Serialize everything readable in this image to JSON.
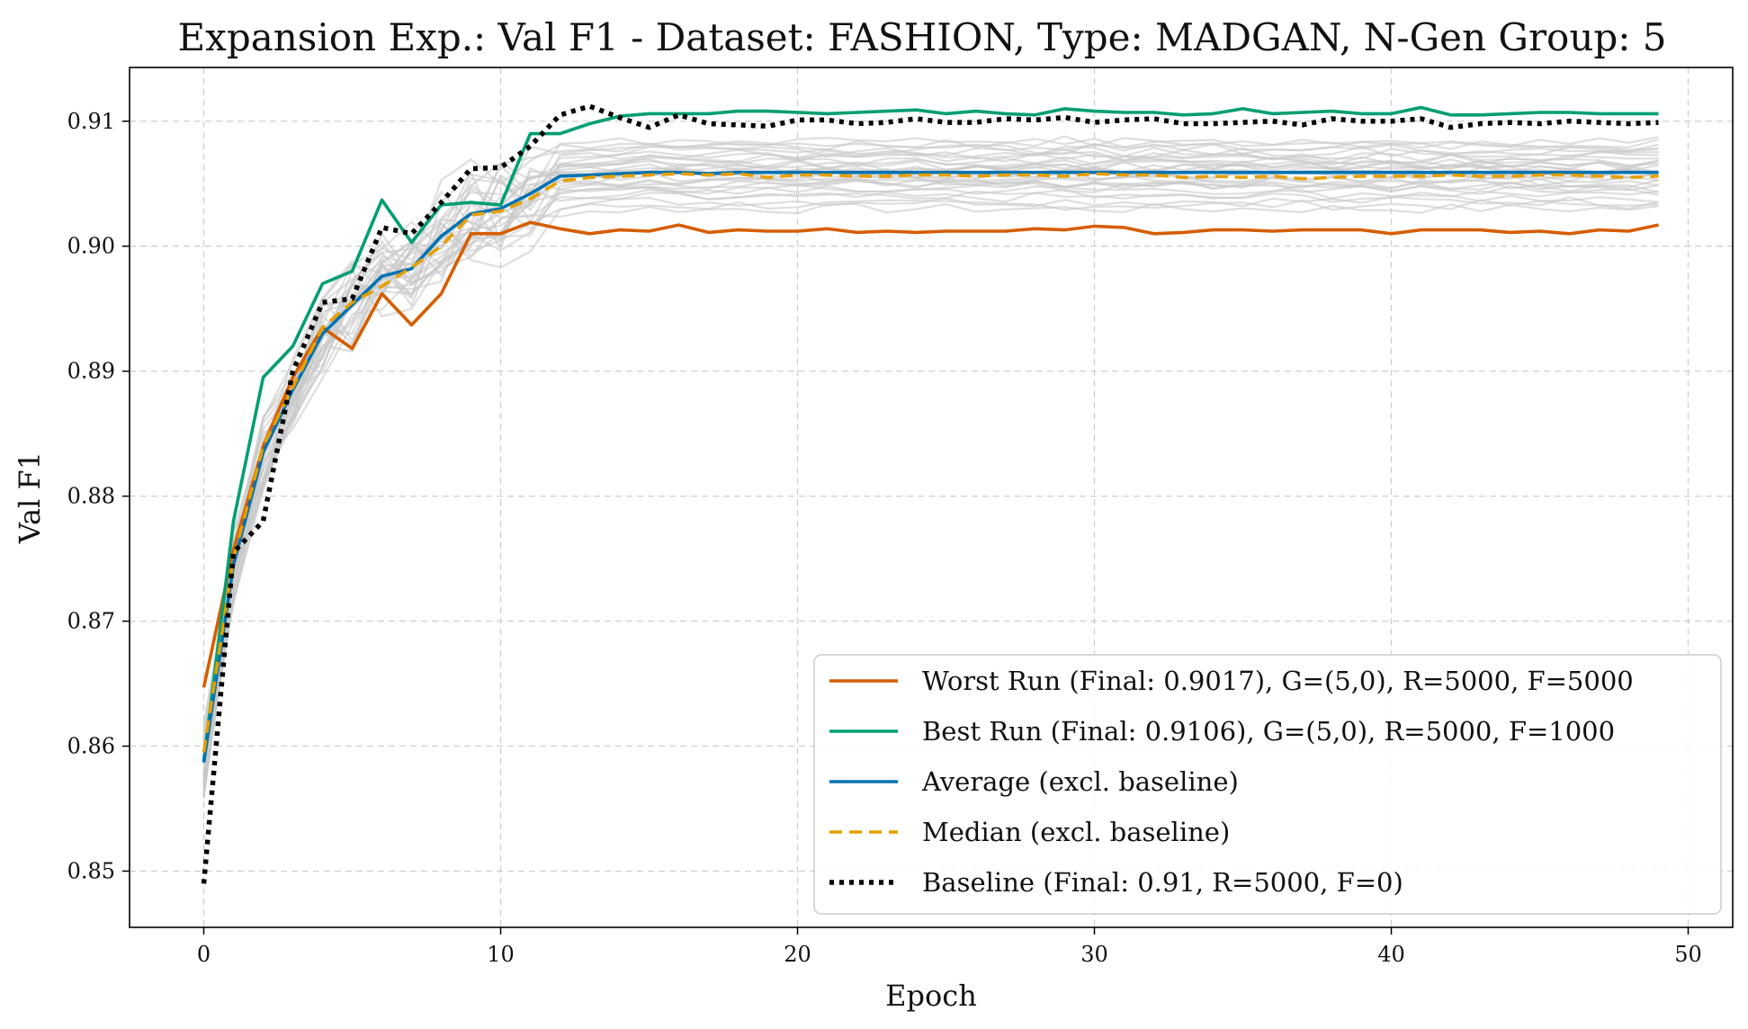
{
  "chart_data": {
    "type": "line",
    "title": "Expansion Exp.: Val F1 - Dataset: FASHION, Type: MADGAN, N-Gen Group: 5",
    "xlabel": "Epoch",
    "ylabel": "Val F1",
    "xlim": [
      -2.5,
      51.5
    ],
    "ylim": [
      0.8455,
      0.9143
    ],
    "xticks": [
      0,
      10,
      20,
      30,
      40,
      50
    ],
    "yticks": [
      0.85,
      0.86,
      0.87,
      0.88,
      0.89,
      0.9,
      0.91
    ],
    "ytick_labels": [
      "0.85",
      "0.86",
      "0.87",
      "0.88",
      "0.89",
      "0.90",
      "0.91"
    ],
    "grid": true,
    "legend_position": "lower-right",
    "background_runs": {
      "description_color": "#c8c8c8",
      "count": 30,
      "plateau_values": [
        0.903,
        0.9033,
        0.9036,
        0.9039,
        0.9042,
        0.9045,
        0.9047,
        0.9049,
        0.9051,
        0.9053,
        0.9055,
        0.9057,
        0.9058,
        0.906,
        0.9061,
        0.9062,
        0.9064,
        0.9066,
        0.9068,
        0.907,
        0.9072,
        0.9074,
        0.9076,
        0.9078,
        0.908,
        0.9082,
        0.9084,
        0.9058,
        0.905,
        0.9065
      ]
    },
    "series": [
      {
        "name": "Worst Run (Final: 0.9017), G=(5,0), R=5000, F=5000",
        "color": "#d55e00",
        "style": "solid",
        "x": [
          0,
          1,
          2,
          3,
          4,
          5,
          6,
          7,
          8,
          9,
          10,
          11,
          12,
          13,
          14,
          15,
          16,
          17,
          18,
          19,
          20,
          21,
          22,
          23,
          24,
          25,
          26,
          27,
          28,
          29,
          30,
          31,
          32,
          33,
          34,
          35,
          36,
          37,
          38,
          39,
          40,
          41,
          42,
          43,
          44,
          45,
          46,
          47,
          48,
          49
        ],
        "values": [
          0.8647,
          0.8757,
          0.884,
          0.8895,
          0.8935,
          0.8918,
          0.8962,
          0.8937,
          0.8962,
          0.901,
          0.901,
          0.9019,
          0.9014,
          0.901,
          0.9013,
          0.9012,
          0.9017,
          0.9011,
          0.9013,
          0.9012,
          0.9012,
          0.9014,
          0.9011,
          0.9012,
          0.9011,
          0.9012,
          0.9012,
          0.9012,
          0.9014,
          0.9013,
          0.9016,
          0.9015,
          0.901,
          0.9011,
          0.9013,
          0.9013,
          0.9012,
          0.9013,
          0.9013,
          0.9013,
          0.901,
          0.9013,
          0.9013,
          0.9013,
          0.9011,
          0.9012,
          0.901,
          0.9013,
          0.9012,
          0.9017
        ]
      },
      {
        "name": "Best Run (Final: 0.9106), G=(5,0), R=5000, F=1000",
        "color": "#009e73",
        "style": "solid",
        "x": [
          0,
          1,
          2,
          3,
          4,
          5,
          6,
          7,
          8,
          9,
          10,
          11,
          12,
          13,
          14,
          15,
          16,
          17,
          18,
          19,
          20,
          21,
          22,
          23,
          24,
          25,
          26,
          27,
          28,
          29,
          30,
          31,
          32,
          33,
          34,
          35,
          36,
          37,
          38,
          39,
          40,
          41,
          42,
          43,
          44,
          45,
          46,
          47,
          48,
          49
        ],
        "values": [
          0.8588,
          0.878,
          0.8895,
          0.892,
          0.897,
          0.898,
          0.9037,
          0.9003,
          0.9033,
          0.9035,
          0.9033,
          0.909,
          0.909,
          0.9098,
          0.9104,
          0.9106,
          0.9106,
          0.9106,
          0.9108,
          0.9108,
          0.9107,
          0.9106,
          0.9107,
          0.9108,
          0.9109,
          0.9106,
          0.9108,
          0.9106,
          0.9105,
          0.911,
          0.9108,
          0.9107,
          0.9107,
          0.9105,
          0.9106,
          0.911,
          0.9106,
          0.9107,
          0.9108,
          0.9106,
          0.9106,
          0.9111,
          0.9105,
          0.9105,
          0.9106,
          0.9107,
          0.9107,
          0.9106,
          0.9106,
          0.9106
        ]
      },
      {
        "name": "Average (excl. baseline)",
        "color": "#0072b2",
        "style": "solid",
        "x": [
          0,
          1,
          2,
          3,
          4,
          5,
          6,
          7,
          8,
          9,
          10,
          11,
          12,
          13,
          14,
          15,
          16,
          17,
          18,
          19,
          20,
          21,
          22,
          23,
          24,
          25,
          26,
          27,
          28,
          29,
          30,
          31,
          32,
          33,
          34,
          35,
          36,
          37,
          38,
          39,
          40,
          41,
          42,
          43,
          44,
          45,
          46,
          47,
          48,
          49
        ],
        "values": [
          0.8587,
          0.8745,
          0.8835,
          0.8885,
          0.893,
          0.8953,
          0.8976,
          0.8982,
          0.9008,
          0.9026,
          0.903,
          0.9042,
          0.9056,
          0.9057,
          0.9058,
          0.9059,
          0.9059,
          0.9058,
          0.9059,
          0.9059,
          0.9059,
          0.9059,
          0.9059,
          0.9059,
          0.9059,
          0.9059,
          0.9059,
          0.9059,
          0.9059,
          0.9059,
          0.9059,
          0.9059,
          0.9059,
          0.9059,
          0.9059,
          0.9059,
          0.9059,
          0.9059,
          0.9059,
          0.9059,
          0.9059,
          0.9059,
          0.9059,
          0.9059,
          0.9059,
          0.9059,
          0.9059,
          0.9059,
          0.9059,
          0.9059
        ]
      },
      {
        "name": "Median (excl. baseline)",
        "color": "#e69f00",
        "style": "dashed",
        "x": [
          0,
          1,
          2,
          3,
          4,
          5,
          6,
          7,
          8,
          9,
          10,
          11,
          12,
          13,
          14,
          15,
          16,
          17,
          18,
          19,
          20,
          21,
          22,
          23,
          24,
          25,
          26,
          27,
          28,
          29,
          30,
          31,
          32,
          33,
          34,
          35,
          36,
          37,
          38,
          39,
          40,
          41,
          42,
          43,
          44,
          45,
          46,
          47,
          48,
          49
        ],
        "values": [
          0.8595,
          0.875,
          0.884,
          0.8887,
          0.8935,
          0.8955,
          0.8968,
          0.8983,
          0.9,
          0.9025,
          0.9028,
          0.9038,
          0.9052,
          0.9055,
          0.9056,
          0.9057,
          0.9058,
          0.9057,
          0.9058,
          0.9055,
          0.9057,
          0.9057,
          0.9056,
          0.9056,
          0.9057,
          0.9057,
          0.9056,
          0.9057,
          0.9057,
          0.9056,
          0.9058,
          0.9057,
          0.9057,
          0.9055,
          0.9056,
          0.9055,
          0.9056,
          0.9054,
          0.9055,
          0.9056,
          0.9056,
          0.9056,
          0.9057,
          0.9056,
          0.9056,
          0.9057,
          0.9057,
          0.9056,
          0.9055,
          0.9056
        ]
      },
      {
        "name": "Baseline (Final: 0.91, R=5000, F=0)",
        "color": "#000000",
        "style": "dotted",
        "x": [
          0,
          1,
          2,
          3,
          4,
          5,
          6,
          7,
          8,
          9,
          10,
          11,
          12,
          13,
          14,
          15,
          16,
          17,
          18,
          19,
          20,
          21,
          22,
          23,
          24,
          25,
          26,
          27,
          28,
          29,
          30,
          31,
          32,
          33,
          34,
          35,
          36,
          37,
          38,
          39,
          40,
          41,
          42,
          43,
          44,
          45,
          46,
          47,
          48,
          49
        ],
        "values": [
          0.849,
          0.8755,
          0.878,
          0.89,
          0.8955,
          0.8958,
          0.9015,
          0.901,
          0.9035,
          0.9062,
          0.9063,
          0.908,
          0.9105,
          0.9112,
          0.9103,
          0.9095,
          0.9105,
          0.9098,
          0.9097,
          0.9096,
          0.9101,
          0.9101,
          0.9098,
          0.9099,
          0.9102,
          0.9099,
          0.9099,
          0.9102,
          0.9101,
          0.9103,
          0.9099,
          0.9101,
          0.9102,
          0.9098,
          0.9098,
          0.9099,
          0.91,
          0.9097,
          0.9102,
          0.91,
          0.91,
          0.9102,
          0.9095,
          0.9098,
          0.9099,
          0.9098,
          0.91,
          0.9099,
          0.9098,
          0.9099
        ]
      }
    ]
  }
}
